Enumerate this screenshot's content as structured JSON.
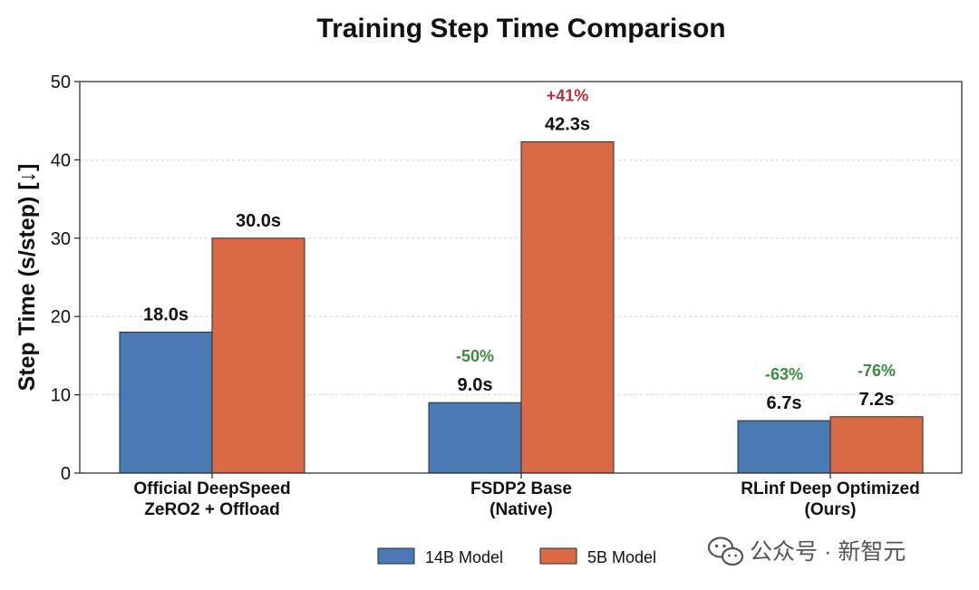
{
  "chart_data": {
    "type": "bar",
    "title": "Training Step Time Comparison",
    "ylabel": "Step Time (s/step) [↓]",
    "xlabel": "",
    "ylim": [
      0,
      50
    ],
    "yticks": [
      0,
      10,
      20,
      30,
      40,
      50
    ],
    "grid": "horizontal, dashed",
    "legend_position": "bottom-center",
    "categories": [
      [
        "Official DeepSpeed",
        "ZeRO2 + Offload"
      ],
      [
        "FSDP2 Base",
        "(Native)"
      ],
      [
        "RLinf Deep Optimized",
        "(Ours)"
      ]
    ],
    "series": [
      {
        "name": "14B Model",
        "color": "#4a7ab3",
        "values": [
          18.0,
          9.0,
          6.7
        ],
        "labels": [
          "18.0s",
          "9.0s",
          "6.7s"
        ],
        "changes": [
          "",
          "-50%",
          "-63%"
        ]
      },
      {
        "name": "5B Model",
        "color": "#d96a45",
        "values": [
          30.0,
          42.3,
          7.2
        ],
        "labels": [
          "30.0s",
          "42.3s",
          "7.2s"
        ],
        "changes": [
          "",
          "+41%",
          "-76%"
        ]
      }
    ],
    "change_colors": {
      "increase": "#b3343a",
      "decrease": "#3c8a3f"
    }
  },
  "watermark": {
    "text": "公众号 · 新智元",
    "icon": "wechat-icon"
  }
}
